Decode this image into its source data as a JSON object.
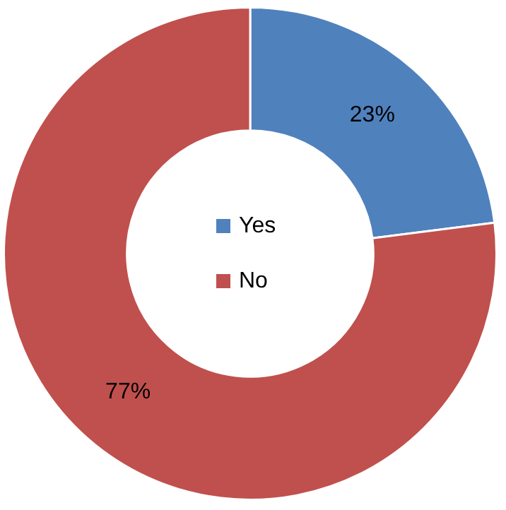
{
  "chart_data": {
    "type": "donut",
    "categories": [
      "Yes",
      "No"
    ],
    "values": [
      23,
      77
    ],
    "colors": [
      "#4f81bd",
      "#c0504d"
    ],
    "value_labels": [
      "23%",
      "77%"
    ],
    "legend": "center"
  }
}
